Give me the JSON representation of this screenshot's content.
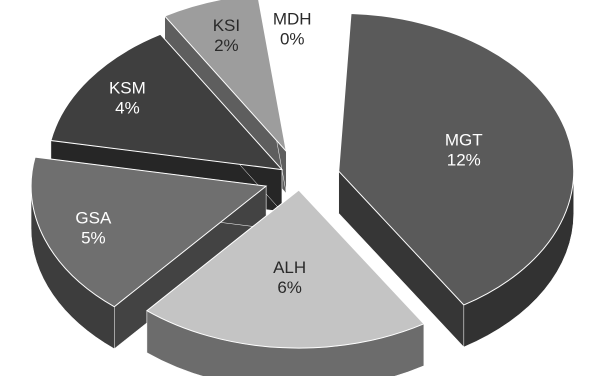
{
  "chart_data": {
    "type": "pie",
    "style": "exploded-3d",
    "categories": [
      "MGT",
      "ALH",
      "GSA",
      "KSM",
      "KSI",
      "MDH"
    ],
    "values": [
      12,
      6,
      5,
      4,
      2,
      0
    ],
    "value_labels": [
      "12%",
      "6%",
      "5%",
      "4%",
      "2%",
      "0%"
    ],
    "title": "",
    "legend": "none",
    "colors": {
      "MGT": "#5a5a5a",
      "ALH": "#c4c4c4",
      "GSA": "#6f6f6f",
      "KSM": "#3f3f3f",
      "KSI": "#9d9d9d",
      "MDH": "#ffffff"
    }
  }
}
